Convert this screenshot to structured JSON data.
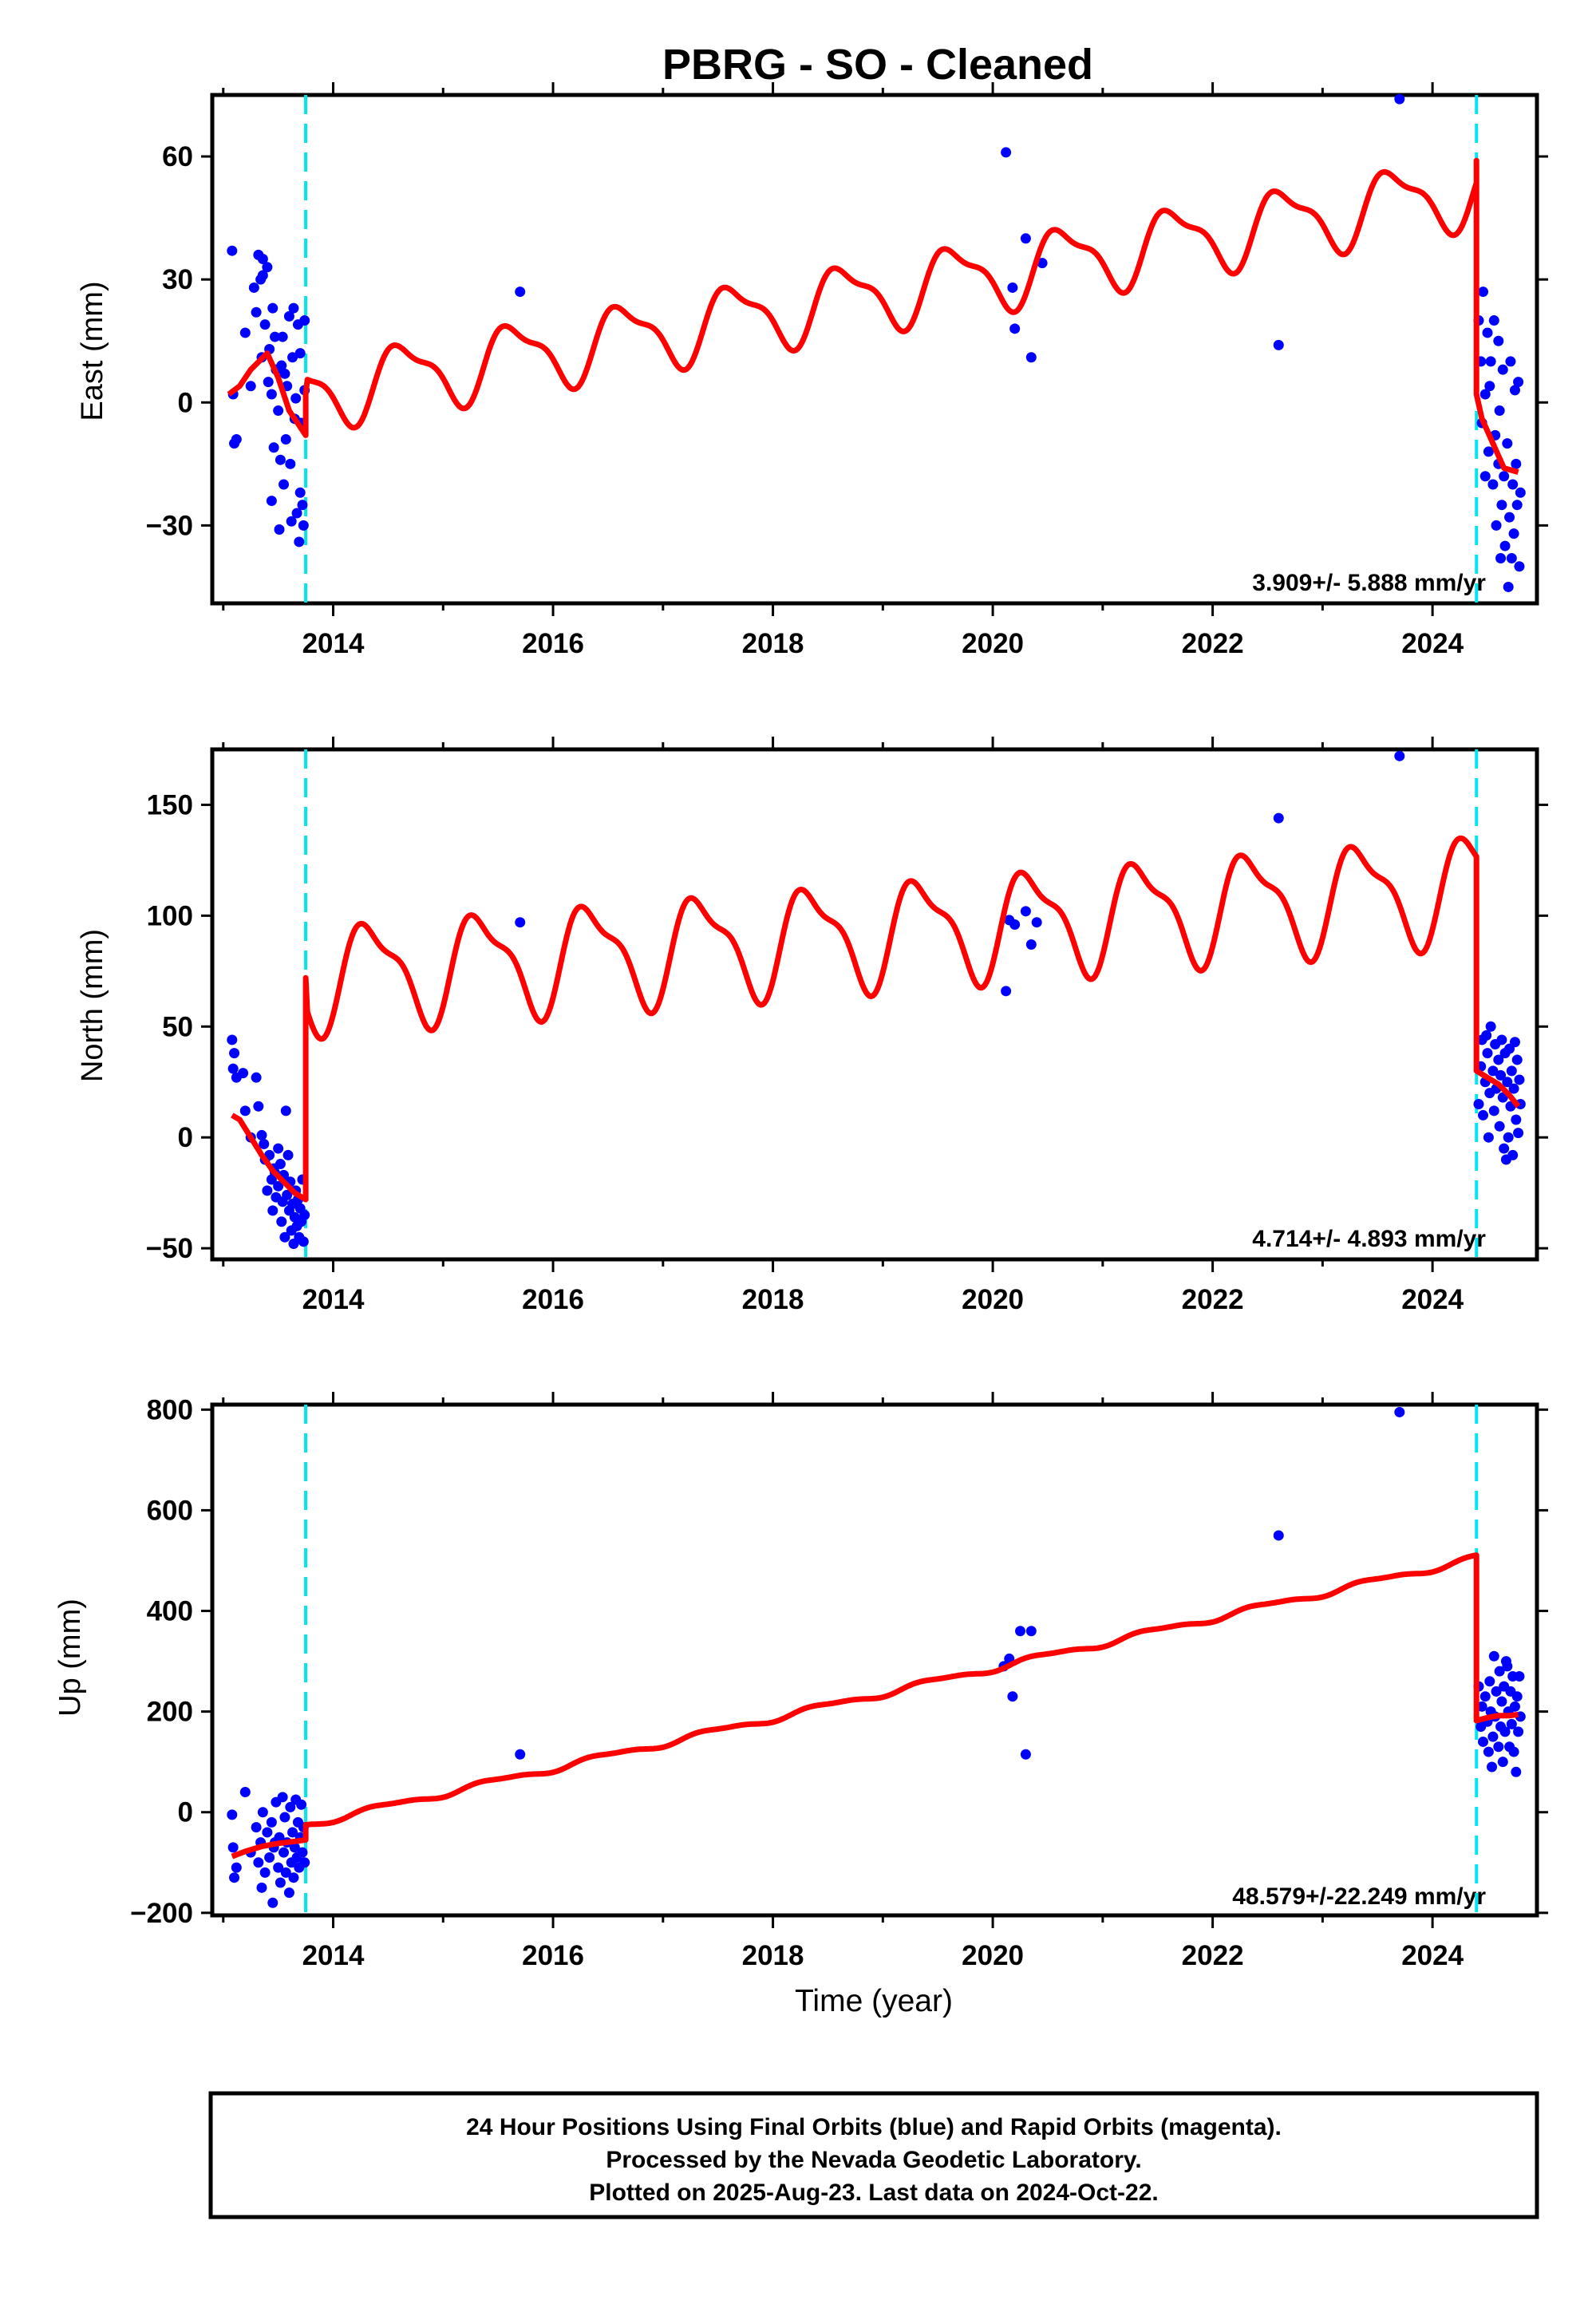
{
  "title": "PBRG  - SO - Cleaned",
  "x_axis": {
    "label": "Time (year)",
    "range": [
      2012.9,
      2024.95
    ],
    "ticks": [
      2014,
      2016,
      2018,
      2020,
      2022,
      2024
    ],
    "tick_labels": [
      "2014",
      "2016",
      "2018",
      "2020",
      "2022",
      "2024"
    ]
  },
  "colors": {
    "points": "#0000ff",
    "model": "#ff0000",
    "breaks": "#00e5ee",
    "frame": "#000000"
  },
  "breaks": [
    2013.75,
    2024.4
  ],
  "footer": {
    "lines": [
      "24 Hour Positions Using Final Orbits (blue) and Rapid Orbits (magenta).",
      "Processed by the Nevada Geodetic Laboratory.",
      "Plotted on 2025-Aug-23. Last data on 2024-Oct-22."
    ]
  },
  "chart_data": [
    {
      "type": "scatter",
      "name": "east",
      "ylabel": "East (mm)",
      "ylim": [
        -49,
        75
      ],
      "yticks": [
        -30,
        0,
        30,
        60
      ],
      "ytick_labels": [
        "−30",
        "0",
        "30",
        "60"
      ],
      "rate_text": "3.909+/- 5.888 mm/yr",
      "model": {
        "segments": [
          {
            "x": [
              2013.05,
              2013.15,
              2013.25,
              2013.4,
              2013.5,
              2013.6,
              2013.7,
              2013.75
            ],
            "y": [
              2,
              4,
              8,
              12,
              6,
              -2,
              -6,
              -8
            ]
          },
          {
            "x": [
              2013.75,
              2024.4
            ],
            "y_start": 2,
            "y_end": 52,
            "amplitude": 8,
            "phase_year": 2014.4,
            "shape": "annual+semiannual"
          },
          {
            "x": [
              2024.4,
              2024.45,
              2024.55,
              2024.65,
              2024.78
            ],
            "y": [
              2,
              -4,
              -10,
              -16,
              -17
            ]
          }
        ],
        "jump_tops": [
          2013.75,
          2024.4
        ],
        "end_value": 59
      },
      "points": [
        [
          2013.08,
          37
        ],
        [
          2013.09,
          2
        ],
        [
          2013.1,
          -10
        ],
        [
          2013.12,
          -9
        ],
        [
          2013.2,
          17
        ],
        [
          2013.25,
          4
        ],
        [
          2013.28,
          28
        ],
        [
          2013.3,
          22
        ],
        [
          2013.32,
          36
        ],
        [
          2013.34,
          30
        ],
        [
          2013.35,
          11
        ],
        [
          2013.36,
          35
        ],
        [
          2013.38,
          19
        ],
        [
          2013.4,
          33
        ],
        [
          2013.41,
          5
        ],
        [
          2013.42,
          13
        ],
        [
          2013.44,
          2
        ],
        [
          2013.45,
          23
        ],
        [
          2013.46,
          -11
        ],
        [
          2013.47,
          16
        ],
        [
          2013.48,
          8
        ],
        [
          2013.5,
          -2
        ],
        [
          2013.51,
          -31
        ],
        [
          2013.52,
          -14
        ],
        [
          2013.54,
          16
        ],
        [
          2013.55,
          -20
        ],
        [
          2013.56,
          7
        ],
        [
          2013.57,
          -9
        ],
        [
          2013.58,
          4
        ],
        [
          2013.6,
          21
        ],
        [
          2013.61,
          -15
        ],
        [
          2013.62,
          -29
        ],
        [
          2013.63,
          11
        ],
        [
          2013.64,
          23
        ],
        [
          2013.65,
          -4
        ],
        [
          2013.66,
          1
        ],
        [
          2013.67,
          -27
        ],
        [
          2013.68,
          19
        ],
        [
          2013.69,
          -34
        ],
        [
          2013.7,
          -22
        ],
        [
          2013.7,
          12
        ],
        [
          2013.71,
          -5
        ],
        [
          2013.72,
          -25
        ],
        [
          2013.73,
          -30
        ],
        [
          2013.74,
          3
        ],
        [
          2013.74,
          20
        ],
        [
          2013.36,
          31
        ],
        [
          2013.44,
          -24
        ],
        [
          2013.53,
          9
        ],
        [
          2015.7,
          27
        ],
        [
          2020.12,
          61
        ],
        [
          2020.18,
          28
        ],
        [
          2020.2,
          18
        ],
        [
          2020.3,
          40
        ],
        [
          2020.35,
          11
        ],
        [
          2020.45,
          34
        ],
        [
          2022.6,
          14
        ],
        [
          2023.7,
          74
        ],
        [
          2024.42,
          20
        ],
        [
          2024.44,
          10
        ],
        [
          2024.45,
          -5
        ],
        [
          2024.46,
          27
        ],
        [
          2024.48,
          2
        ],
        [
          2024.5,
          17
        ],
        [
          2024.51,
          -12
        ],
        [
          2024.52,
          4
        ],
        [
          2024.53,
          10
        ],
        [
          2024.55,
          -20
        ],
        [
          2024.56,
          20
        ],
        [
          2024.57,
          -8
        ],
        [
          2024.58,
          -30
        ],
        [
          2024.6,
          -15
        ],
        [
          2024.61,
          -2
        ],
        [
          2024.62,
          -38
        ],
        [
          2024.63,
          -25
        ],
        [
          2024.64,
          8
        ],
        [
          2024.65,
          -18
        ],
        [
          2024.66,
          -35
        ],
        [
          2024.68,
          -10
        ],
        [
          2024.69,
          -45
        ],
        [
          2024.7,
          -28
        ],
        [
          2024.71,
          10
        ],
        [
          2024.72,
          -38
        ],
        [
          2024.73,
          -20
        ],
        [
          2024.74,
          -32
        ],
        [
          2024.75,
          3
        ],
        [
          2024.76,
          -15
        ],
        [
          2024.77,
          -25
        ],
        [
          2024.78,
          5
        ],
        [
          2024.79,
          -40
        ],
        [
          2024.8,
          -22
        ],
        [
          2024.48,
          -18
        ],
        [
          2024.6,
          15
        ]
      ]
    },
    {
      "type": "scatter",
      "name": "north",
      "ylabel": "North (mm)",
      "ylim": [
        -55,
        175
      ],
      "yticks": [
        -50,
        0,
        50,
        100,
        150
      ],
      "ytick_labels": [
        "−50",
        "0",
        "50",
        "100",
        "150"
      ],
      "rate_text": "4.714+/- 4.893 mm/yr",
      "model": {
        "segments": [
          {
            "x": [
              2013.08,
              2013.15,
              2013.25,
              2013.35,
              2013.45,
              2013.55,
              2013.65,
              2013.75
            ],
            "y": [
              10,
              8,
              0,
              -8,
              -15,
              -20,
              -25,
              -28
            ]
          },
          {
            "x": [
              2013.75,
              2024.4
            ],
            "y_start": 72,
            "y_end": 113,
            "amplitude": 22,
            "phase_year": 2014.1,
            "shape": "annual+semiannual"
          },
          {
            "x": [
              2024.4,
              2024.5,
              2024.6,
              2024.7,
              2024.78
            ],
            "y": [
              30,
              27,
              24,
              19,
              14
            ]
          }
        ],
        "end_value": 120
      },
      "points": [
        [
          2013.08,
          44
        ],
        [
          2013.09,
          31
        ],
        [
          2013.1,
          38
        ],
        [
          2013.12,
          27
        ],
        [
          2013.18,
          29
        ],
        [
          2013.2,
          12
        ],
        [
          2013.25,
          0
        ],
        [
          2013.3,
          27
        ],
        [
          2013.32,
          14
        ],
        [
          2013.35,
          1
        ],
        [
          2013.37,
          -3
        ],
        [
          2013.38,
          -10
        ],
        [
          2013.4,
          -24
        ],
        [
          2013.42,
          -8
        ],
        [
          2013.44,
          -19
        ],
        [
          2013.45,
          -33
        ],
        [
          2013.46,
          -14
        ],
        [
          2013.48,
          -27
        ],
        [
          2013.5,
          -5
        ],
        [
          2013.5,
          -22
        ],
        [
          2013.52,
          -12
        ],
        [
          2013.53,
          -38
        ],
        [
          2013.54,
          -29
        ],
        [
          2013.55,
          -17
        ],
        [
          2013.56,
          -45
        ],
        [
          2013.57,
          12
        ],
        [
          2013.58,
          -26
        ],
        [
          2013.6,
          -33
        ],
        [
          2013.61,
          -20
        ],
        [
          2013.62,
          -42
        ],
        [
          2013.63,
          -30
        ],
        [
          2013.64,
          -48
        ],
        [
          2013.65,
          -36
        ],
        [
          2013.66,
          -24
        ],
        [
          2013.67,
          -40
        ],
        [
          2013.68,
          -28
        ],
        [
          2013.69,
          -45
        ],
        [
          2013.7,
          -32
        ],
        [
          2013.71,
          -38
        ],
        [
          2013.72,
          -19
        ],
        [
          2013.73,
          -47
        ],
        [
          2013.74,
          -35
        ],
        [
          2013.47,
          -16
        ],
        [
          2013.59,
          -8
        ],
        [
          2015.7,
          97
        ],
        [
          2020.12,
          66
        ],
        [
          2020.15,
          98
        ],
        [
          2020.2,
          96
        ],
        [
          2020.3,
          102
        ],
        [
          2020.35,
          87
        ],
        [
          2020.4,
          97
        ],
        [
          2022.6,
          144
        ],
        [
          2023.7,
          172
        ],
        [
          2024.42,
          15
        ],
        [
          2024.44,
          32
        ],
        [
          2024.45,
          44
        ],
        [
          2024.46,
          10
        ],
        [
          2024.48,
          25
        ],
        [
          2024.5,
          38
        ],
        [
          2024.51,
          0
        ],
        [
          2024.52,
          20
        ],
        [
          2024.53,
          50
        ],
        [
          2024.55,
          30
        ],
        [
          2024.56,
          12
        ],
        [
          2024.57,
          42
        ],
        [
          2024.58,
          22
        ],
        [
          2024.6,
          35
        ],
        [
          2024.61,
          5
        ],
        [
          2024.62,
          28
        ],
        [
          2024.63,
          44
        ],
        [
          2024.64,
          18
        ],
        [
          2024.65,
          -5
        ],
        [
          2024.66,
          38
        ],
        [
          2024.68,
          25
        ],
        [
          2024.69,
          0
        ],
        [
          2024.7,
          40
        ],
        [
          2024.71,
          14
        ],
        [
          2024.72,
          30
        ],
        [
          2024.73,
          -8
        ],
        [
          2024.74,
          22
        ],
        [
          2024.75,
          43
        ],
        [
          2024.76,
          8
        ],
        [
          2024.77,
          35
        ],
        [
          2024.78,
          2
        ],
        [
          2024.79,
          26
        ],
        [
          2024.8,
          15
        ],
        [
          2024.67,
          -10
        ],
        [
          2024.49,
          46
        ]
      ]
    },
    {
      "type": "scatter",
      "name": "up",
      "ylabel": "Up (mm)",
      "ylim": [
        -205,
        810
      ],
      "yticks": [
        -200,
        0,
        200,
        400,
        600,
        800
      ],
      "ytick_labels": [
        "−200",
        "0",
        "200",
        "400",
        "600",
        "800"
      ],
      "rate_text": "48.579+/-22.249 mm/yr",
      "model": {
        "segments": [
          {
            "x": [
              2013.08,
              2013.2,
              2013.35,
              2013.5,
              2013.65,
              2013.75
            ],
            "y": [
              -88,
              -78,
              -68,
              -62,
              -58,
              -55
            ]
          },
          {
            "x": [
              2013.75,
              2024.4
            ],
            "y_start": -25,
            "y_end": 505,
            "amplitude": 6,
            "phase_year": 2014.2,
            "shape": "annual+semiannual"
          },
          {
            "x": [
              2024.4,
              2024.5,
              2024.6,
              2024.7,
              2024.78
            ],
            "y": [
              182,
              188,
              192,
              192,
              194
            ]
          }
        ],
        "end_value": 505
      },
      "points": [
        [
          2013.08,
          -5
        ],
        [
          2013.09,
          -70
        ],
        [
          2013.1,
          -130
        ],
        [
          2013.12,
          -110
        ],
        [
          2013.2,
          40
        ],
        [
          2013.25,
          -80
        ],
        [
          2013.3,
          -30
        ],
        [
          2013.32,
          -100
        ],
        [
          2013.34,
          -60
        ],
        [
          2013.36,
          0
        ],
        [
          2013.38,
          -120
        ],
        [
          2013.4,
          -40
        ],
        [
          2013.42,
          -90
        ],
        [
          2013.44,
          -20
        ],
        [
          2013.45,
          -180
        ],
        [
          2013.46,
          -70
        ],
        [
          2013.48,
          20
        ],
        [
          2013.5,
          -110
        ],
        [
          2013.51,
          -50
        ],
        [
          2013.52,
          -140
        ],
        [
          2013.54,
          30
        ],
        [
          2013.55,
          -80
        ],
        [
          2013.56,
          -10
        ],
        [
          2013.57,
          -120
        ],
        [
          2013.58,
          -60
        ],
        [
          2013.6,
          -160
        ],
        [
          2013.61,
          10
        ],
        [
          2013.62,
          -100
        ],
        [
          2013.63,
          -40
        ],
        [
          2013.64,
          -130
        ],
        [
          2013.65,
          -70
        ],
        [
          2013.66,
          25
        ],
        [
          2013.67,
          -90
        ],
        [
          2013.68,
          -20
        ],
        [
          2013.69,
          -110
        ],
        [
          2013.7,
          -50
        ],
        [
          2013.71,
          15
        ],
        [
          2013.72,
          -80
        ],
        [
          2013.73,
          -30
        ],
        [
          2013.74,
          -100
        ],
        [
          2013.35,
          -150
        ],
        [
          2013.47,
          -60
        ],
        [
          2015.7,
          115
        ],
        [
          2020.1,
          290
        ],
        [
          2020.15,
          305
        ],
        [
          2020.18,
          230
        ],
        [
          2020.25,
          360
        ],
        [
          2020.3,
          115
        ],
        [
          2020.35,
          360
        ],
        [
          2022.6,
          550
        ],
        [
          2023.7,
          795
        ],
        [
          2024.42,
          250
        ],
        [
          2024.44,
          170
        ],
        [
          2024.45,
          210
        ],
        [
          2024.46,
          140
        ],
        [
          2024.48,
          230
        ],
        [
          2024.5,
          180
        ],
        [
          2024.51,
          120
        ],
        [
          2024.52,
          260
        ],
        [
          2024.53,
          200
        ],
        [
          2024.55,
          150
        ],
        [
          2024.56,
          310
        ],
        [
          2024.57,
          190
        ],
        [
          2024.58,
          240
        ],
        [
          2024.6,
          130
        ],
        [
          2024.61,
          280
        ],
        [
          2024.62,
          170
        ],
        [
          2024.63,
          220
        ],
        [
          2024.64,
          100
        ],
        [
          2024.65,
          250
        ],
        [
          2024.66,
          160
        ],
        [
          2024.68,
          290
        ],
        [
          2024.69,
          200
        ],
        [
          2024.7,
          130
        ],
        [
          2024.71,
          240
        ],
        [
          2024.72,
          175
        ],
        [
          2024.73,
          270
        ],
        [
          2024.74,
          120
        ],
        [
          2024.75,
          210
        ],
        [
          2024.76,
          80
        ],
        [
          2024.77,
          230
        ],
        [
          2024.78,
          160
        ],
        [
          2024.79,
          270
        ],
        [
          2024.8,
          190
        ],
        [
          2024.67,
          300
        ],
        [
          2024.54,
          90
        ]
      ]
    }
  ]
}
